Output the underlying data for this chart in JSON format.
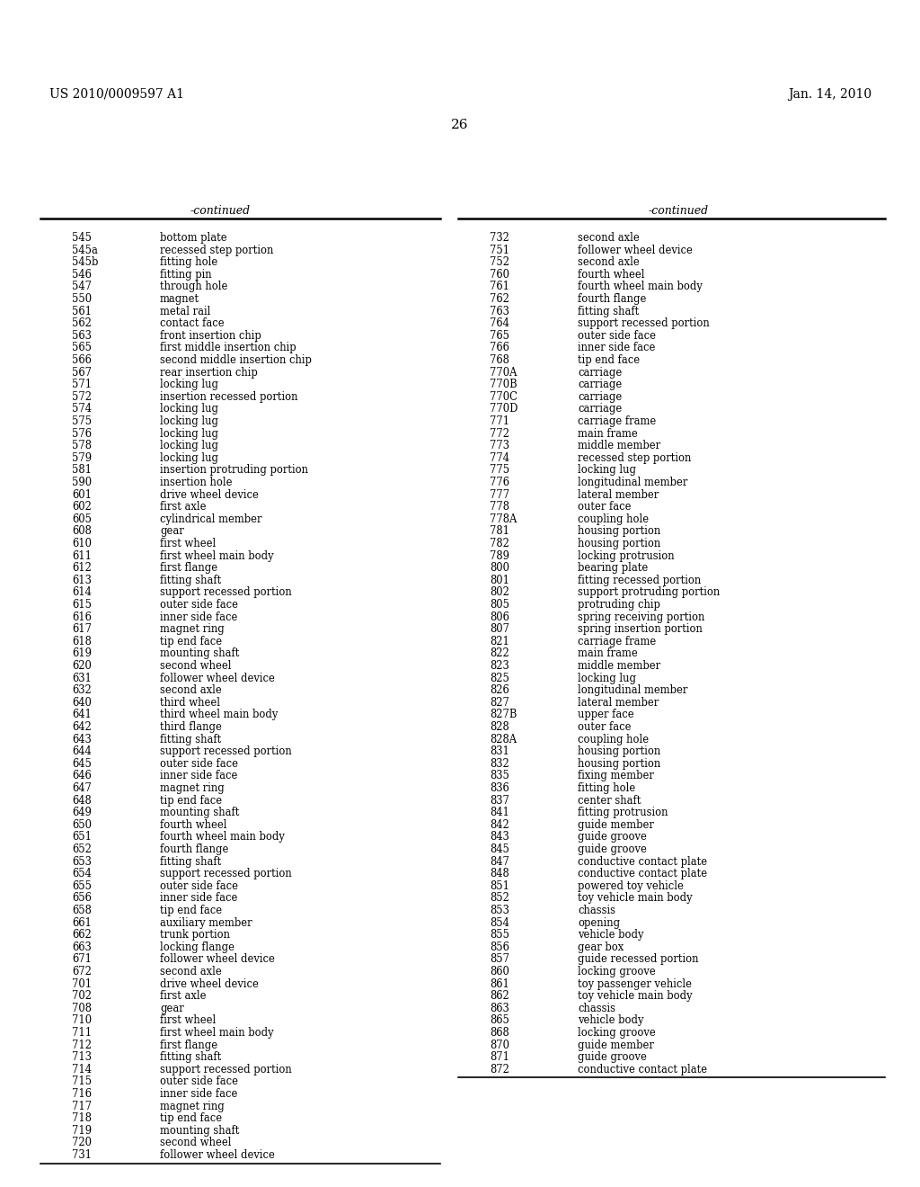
{
  "header_left": "US 2010/0009597 A1",
  "header_right": "Jan. 14, 2010",
  "page_number": "26",
  "col1_header": "-continued",
  "col2_header": "-continued",
  "left_entries": [
    [
      "545",
      "bottom plate"
    ],
    [
      "545a",
      "recessed step portion"
    ],
    [
      "545b",
      "fitting hole"
    ],
    [
      "546",
      "fitting pin"
    ],
    [
      "547",
      "through hole"
    ],
    [
      "550",
      "magnet"
    ],
    [
      "561",
      "metal rail"
    ],
    [
      "562",
      "contact face"
    ],
    [
      "563",
      "front insertion chip"
    ],
    [
      "565",
      "first middle insertion chip"
    ],
    [
      "566",
      "second middle insertion chip"
    ],
    [
      "567",
      "rear insertion chip"
    ],
    [
      "571",
      "locking lug"
    ],
    [
      "572",
      "insertion recessed portion"
    ],
    [
      "574",
      "locking lug"
    ],
    [
      "575",
      "locking lug"
    ],
    [
      "576",
      "locking lug"
    ],
    [
      "578",
      "locking lug"
    ],
    [
      "579",
      "locking lug"
    ],
    [
      "581",
      "insertion protruding portion"
    ],
    [
      "590",
      "insertion hole"
    ],
    [
      "601",
      "drive wheel device"
    ],
    [
      "602",
      "first axle"
    ],
    [
      "605",
      "cylindrical member"
    ],
    [
      "608",
      "gear"
    ],
    [
      "610",
      "first wheel"
    ],
    [
      "611",
      "first wheel main body"
    ],
    [
      "612",
      "first flange"
    ],
    [
      "613",
      "fitting shaft"
    ],
    [
      "614",
      "support recessed portion"
    ],
    [
      "615",
      "outer side face"
    ],
    [
      "616",
      "inner side face"
    ],
    [
      "617",
      "magnet ring"
    ],
    [
      "618",
      "tip end face"
    ],
    [
      "619",
      "mounting shaft"
    ],
    [
      "620",
      "second wheel"
    ],
    [
      "631",
      "follower wheel device"
    ],
    [
      "632",
      "second axle"
    ],
    [
      "640",
      "third wheel"
    ],
    [
      "641",
      "third wheel main body"
    ],
    [
      "642",
      "third flange"
    ],
    [
      "643",
      "fitting shaft"
    ],
    [
      "644",
      "support recessed portion"
    ],
    [
      "645",
      "outer side face"
    ],
    [
      "646",
      "inner side face"
    ],
    [
      "647",
      "magnet ring"
    ],
    [
      "648",
      "tip end face"
    ],
    [
      "649",
      "mounting shaft"
    ],
    [
      "650",
      "fourth wheel"
    ],
    [
      "651",
      "fourth wheel main body"
    ],
    [
      "652",
      "fourth flange"
    ],
    [
      "653",
      "fitting shaft"
    ],
    [
      "654",
      "support recessed portion"
    ],
    [
      "655",
      "outer side face"
    ],
    [
      "656",
      "inner side face"
    ],
    [
      "658",
      "tip end face"
    ],
    [
      "661",
      "auxiliary member"
    ],
    [
      "662",
      "trunk portion"
    ],
    [
      "663",
      "locking flange"
    ],
    [
      "671",
      "follower wheel device"
    ],
    [
      "672",
      "second axle"
    ],
    [
      "701",
      "drive wheel device"
    ],
    [
      "702",
      "first axle"
    ],
    [
      "708",
      "gear"
    ],
    [
      "710",
      "first wheel"
    ],
    [
      "711",
      "first wheel main body"
    ],
    [
      "712",
      "first flange"
    ],
    [
      "713",
      "fitting shaft"
    ],
    [
      "714",
      "support recessed portion"
    ],
    [
      "715",
      "outer side face"
    ],
    [
      "716",
      "inner side face"
    ],
    [
      "717",
      "magnet ring"
    ],
    [
      "718",
      "tip end face"
    ],
    [
      "719",
      "mounting shaft"
    ],
    [
      "720",
      "second wheel"
    ],
    [
      "731",
      "follower wheel device"
    ]
  ],
  "right_entries": [
    [
      "732",
      "second axle"
    ],
    [
      "751",
      "follower wheel device"
    ],
    [
      "752",
      "second axle"
    ],
    [
      "760",
      "fourth wheel"
    ],
    [
      "761",
      "fourth wheel main body"
    ],
    [
      "762",
      "fourth flange"
    ],
    [
      "763",
      "fitting shaft"
    ],
    [
      "764",
      "support recessed portion"
    ],
    [
      "765",
      "outer side face"
    ],
    [
      "766",
      "inner side face"
    ],
    [
      "768",
      "tip end face"
    ],
    [
      "770A",
      "carriage"
    ],
    [
      "770B",
      "carriage"
    ],
    [
      "770C",
      "carriage"
    ],
    [
      "770D",
      "carriage"
    ],
    [
      "771",
      "carriage frame"
    ],
    [
      "772",
      "main frame"
    ],
    [
      "773",
      "middle member"
    ],
    [
      "774",
      "recessed step portion"
    ],
    [
      "775",
      "locking lug"
    ],
    [
      "776",
      "longitudinal member"
    ],
    [
      "777",
      "lateral member"
    ],
    [
      "778",
      "outer face"
    ],
    [
      "778A",
      "coupling hole"
    ],
    [
      "781",
      "housing portion"
    ],
    [
      "782",
      "housing portion"
    ],
    [
      "789",
      "locking protrusion"
    ],
    [
      "800",
      "bearing plate"
    ],
    [
      "801",
      "fitting recessed portion"
    ],
    [
      "802",
      "support protruding portion"
    ],
    [
      "805",
      "protruding chip"
    ],
    [
      "806",
      "spring receiving portion"
    ],
    [
      "807",
      "spring insertion portion"
    ],
    [
      "821",
      "carriage frame"
    ],
    [
      "822",
      "main frame"
    ],
    [
      "823",
      "middle member"
    ],
    [
      "825",
      "locking lug"
    ],
    [
      "826",
      "longitudinal member"
    ],
    [
      "827",
      "lateral member"
    ],
    [
      "827B",
      "upper face"
    ],
    [
      "828",
      "outer face"
    ],
    [
      "828A",
      "coupling hole"
    ],
    [
      "831",
      "housing portion"
    ],
    [
      "832",
      "housing portion"
    ],
    [
      "835",
      "fixing member"
    ],
    [
      "836",
      "fitting hole"
    ],
    [
      "837",
      "center shaft"
    ],
    [
      "841",
      "fitting protrusion"
    ],
    [
      "842",
      "guide member"
    ],
    [
      "843",
      "guide groove"
    ],
    [
      "845",
      "guide groove"
    ],
    [
      "847",
      "conductive contact plate"
    ],
    [
      "848",
      "conductive contact plate"
    ],
    [
      "851",
      "powered toy vehicle"
    ],
    [
      "852",
      "toy vehicle main body"
    ],
    [
      "853",
      "chassis"
    ],
    [
      "854",
      "opening"
    ],
    [
      "855",
      "vehicle body"
    ],
    [
      "856",
      "gear box"
    ],
    [
      "857",
      "guide recessed portion"
    ],
    [
      "860",
      "locking groove"
    ],
    [
      "861",
      "toy passenger vehicle"
    ],
    [
      "862",
      "toy vehicle main body"
    ],
    [
      "863",
      "chassis"
    ],
    [
      "865",
      "vehicle body"
    ],
    [
      "868",
      "locking groove"
    ],
    [
      "870",
      "guide member"
    ],
    [
      "871",
      "guide groove"
    ],
    [
      "872",
      "conductive contact plate"
    ]
  ]
}
